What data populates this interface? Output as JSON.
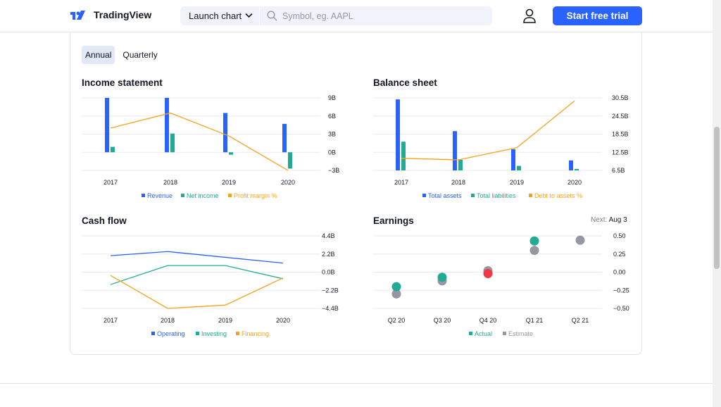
{
  "header": {
    "logo_text": "TradingView",
    "launch_label": "Launch chart",
    "search_placeholder": "Symbol, eg. AAPL",
    "trial_label": "Start free trial"
  },
  "tabs": [
    {
      "label": "Annual",
      "active": true
    },
    {
      "label": "Quarterly",
      "active": false
    }
  ],
  "colors": {
    "blue": "#2962ff",
    "green": "#22ab94",
    "orange": "#f7a21b",
    "red": "#f23645",
    "gray": "#9598a1"
  },
  "panels": {
    "income": {
      "title": "Income statement"
    },
    "balance": {
      "title": "Balance sheet"
    },
    "cashflow": {
      "title": "Cash flow"
    },
    "earnings": {
      "title": "Earnings",
      "next_label": "Next:",
      "next_value": "Aug 3"
    }
  },
  "chart_data": [
    {
      "type": "bar",
      "title": "Income statement",
      "categories": [
        "2017",
        "2018",
        "2019",
        "2020"
      ],
      "y_ticks": [
        "9B",
        "6B",
        "3B",
        "0B",
        "−3B"
      ],
      "ylim": [
        -3,
        9
      ],
      "series": [
        {
          "name": "Revenue",
          "kind": "bar",
          "color": "#2962ff",
          "values": [
            9.0,
            9.0,
            6.5,
            4.7
          ]
        },
        {
          "name": "Net income",
          "kind": "bar",
          "color": "#22ab94",
          "values": [
            0.9,
            3.1,
            -0.4,
            -2.7
          ]
        },
        {
          "name": "Profit margin %",
          "kind": "line",
          "color": "#f7a21b",
          "values": [
            4.0,
            6.5,
            2.7,
            -3.0
          ]
        }
      ]
    },
    {
      "type": "bar",
      "title": "Balance sheet",
      "categories": [
        "2017",
        "2018",
        "2019",
        "2020"
      ],
      "y_ticks": [
        "30.5B",
        "24.5B",
        "18.5B",
        "12.5B",
        "6.5B"
      ],
      "ylim": [
        6.5,
        30.5
      ],
      "series": [
        {
          "name": "Total assets",
          "kind": "bar",
          "color": "#2962ff",
          "values": [
            30.0,
            19.5,
            13.5,
            9.8
          ]
        },
        {
          "name": "Total liabilities",
          "kind": "bar",
          "color": "#22ab94",
          "values": [
            16.0,
            10.0,
            8.0,
            7.0
          ]
        },
        {
          "name": "Debt to assets %",
          "kind": "line",
          "color": "#f7a21b",
          "values": [
            10.5,
            10.0,
            14.0,
            29.5
          ]
        }
      ]
    },
    {
      "type": "line",
      "title": "Cash flow",
      "categories": [
        "2017",
        "2018",
        "2019",
        "2020"
      ],
      "y_ticks": [
        "4.4B",
        "2.2B",
        "0.0B",
        "−2.2B",
        "−4.4B"
      ],
      "ylim": [
        -4.4,
        4.4
      ],
      "series": [
        {
          "name": "Operating",
          "color": "#2962ff",
          "values": [
            2.0,
            2.5,
            1.8,
            1.1
          ]
        },
        {
          "name": "Investing",
          "color": "#22ab94",
          "values": [
            -1.5,
            0.8,
            0.8,
            -0.8
          ]
        },
        {
          "name": "Financing",
          "color": "#f7a21b",
          "values": [
            -0.4,
            -4.4,
            -4.0,
            -0.7
          ]
        }
      ]
    },
    {
      "type": "scatter",
      "title": "Earnings",
      "categories": [
        "Q2 20",
        "Q3 20",
        "Q4 20",
        "Q1 21",
        "Q2 21"
      ],
      "y_ticks": [
        "0.50",
        "0.25",
        "0.00",
        "−0.25",
        "−0.50"
      ],
      "ylim": [
        -0.5,
        0.5
      ],
      "series": [
        {
          "name": "Actual",
          "color": "#22ab94",
          "values": [
            -0.2,
            -0.07,
            -0.02,
            0.43,
            null
          ],
          "miss_color": "#f23645",
          "miss_index": 2
        },
        {
          "name": "Estimate",
          "color": "#9598a1",
          "values": [
            -0.3,
            -0.12,
            0.02,
            0.3,
            0.44
          ]
        }
      ]
    }
  ]
}
